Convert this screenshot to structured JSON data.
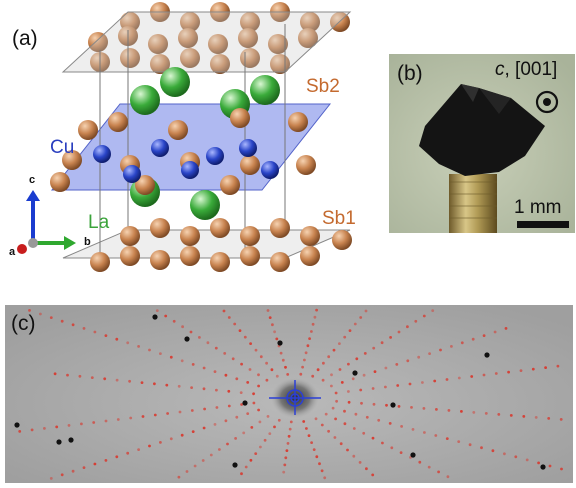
{
  "figure": {
    "panels": {
      "a": {
        "label": "(a)",
        "species": {
          "sb2": "Sb2",
          "cu": "Cu",
          "la": "La",
          "sb1": "Sb1"
        },
        "axes": {
          "c": "c",
          "a": "a",
          "b": "b"
        },
        "colors": {
          "sb": "#c8834f",
          "cu": "#2a45c8",
          "la": "#3aab3a",
          "plane": "#6d7fe6",
          "sb_text": "#c46a2f",
          "cu_text": "#2a3fbf",
          "la_text": "#3aa33a"
        }
      },
      "b": {
        "label": "(b)",
        "direction_axis": "c",
        "direction_index": ", [001]",
        "scale_bar": "1 mm",
        "colors": {
          "background": "#b6bfa6",
          "crystal": "#141414",
          "pin": "#b09a55"
        }
      },
      "c": {
        "label": "(c)",
        "colors": {
          "background": "#a9a9a9",
          "spots": "#d9362b",
          "marker": "#2b3fd6"
        }
      }
    }
  }
}
